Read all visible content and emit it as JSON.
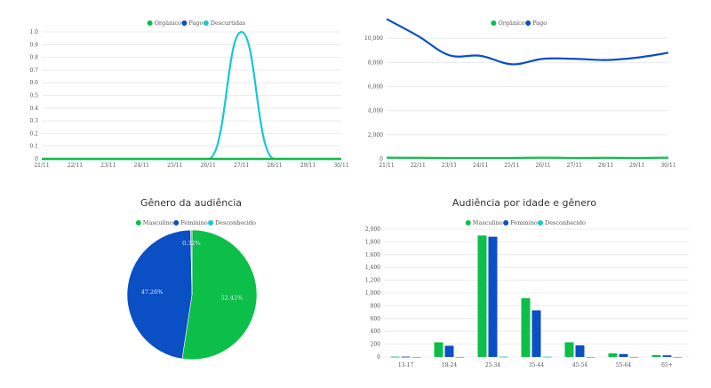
{
  "colors": {
    "organico": "#0cbf48",
    "pago": "#0a4fc4",
    "descurtidas": "#16c8d1",
    "grid": "#e6e6e6"
  },
  "chart_data": [
    {
      "type": "line",
      "x": [
        "21/11",
        "22/11",
        "23/11",
        "24/11",
        "25/11",
        "26/11",
        "27/11",
        "28/11",
        "29/11",
        "30/11"
      ],
      "ylim": [
        0,
        1.0
      ],
      "yticks": [
        "0",
        "0.1",
        "0.2",
        "0.3",
        "0.4",
        "0.5",
        "0.6",
        "0.7",
        "0.8",
        "0.9",
        "1.0"
      ],
      "legend": [
        "Orgânico",
        "Pago",
        "Descurtidas"
      ],
      "series": [
        {
          "name": "Orgânico",
          "values": [
            0,
            0,
            0,
            0,
            0,
            0,
            0,
            0,
            0,
            0
          ]
        },
        {
          "name": "Pago",
          "values": [
            0,
            0,
            0,
            0,
            0,
            0,
            0,
            0,
            0,
            0
          ]
        },
        {
          "name": "Descurtidas",
          "values": [
            0,
            0,
            0,
            0,
            0,
            0,
            1,
            0,
            0,
            0
          ]
        }
      ]
    },
    {
      "type": "line",
      "x": [
        "21/11",
        "22/11",
        "23/11",
        "24/11",
        "25/11",
        "26/11",
        "27/11",
        "28/11",
        "29/11",
        "30/11"
      ],
      "ylim": [
        0,
        12000
      ],
      "yticks": [
        "0",
        "2,000",
        "4,000",
        "6,000",
        "8,000",
        "10,000"
      ],
      "legend": [
        "Orgânico",
        "Pago"
      ],
      "series": [
        {
          "name": "Orgânico",
          "values": [
            100,
            90,
            80,
            80,
            80,
            100,
            80,
            90,
            80,
            100
          ]
        },
        {
          "name": "Pago",
          "values": [
            11600,
            10200,
            8600,
            8550,
            7850,
            8300,
            8300,
            8200,
            8400,
            8800
          ]
        }
      ]
    },
    {
      "type": "pie",
      "title": "Gênero da audiência",
      "legend": [
        "Masculino",
        "Feminino",
        "Desconhecido"
      ],
      "values": [
        52.42,
        47.26,
        0.32
      ],
      "labels": [
        "52.42%",
        "47.26%",
        "0.32%"
      ]
    },
    {
      "type": "bar",
      "title": "Audiência por idade e gênero",
      "categories": [
        "13-17",
        "18-24",
        "25-34",
        "35-44",
        "45-54",
        "55-64",
        "65+"
      ],
      "ylim": [
        0,
        2000
      ],
      "yticks": [
        "0",
        "200",
        "400",
        "600",
        "800",
        "1,000",
        "1,200",
        "1,400",
        "1,600",
        "1,800",
        "2,000"
      ],
      "legend": [
        "Masculino",
        "Feminino",
        "Desconhecido"
      ],
      "series": [
        {
          "name": "Masculino",
          "values": [
            5,
            230,
            1900,
            920,
            230,
            55,
            30
          ]
        },
        {
          "name": "Feminino",
          "values": [
            5,
            175,
            1880,
            730,
            180,
            45,
            25
          ]
        },
        {
          "name": "Desconhecido",
          "values": [
            0,
            0,
            5,
            5,
            0,
            0,
            0
          ]
        }
      ]
    }
  ]
}
